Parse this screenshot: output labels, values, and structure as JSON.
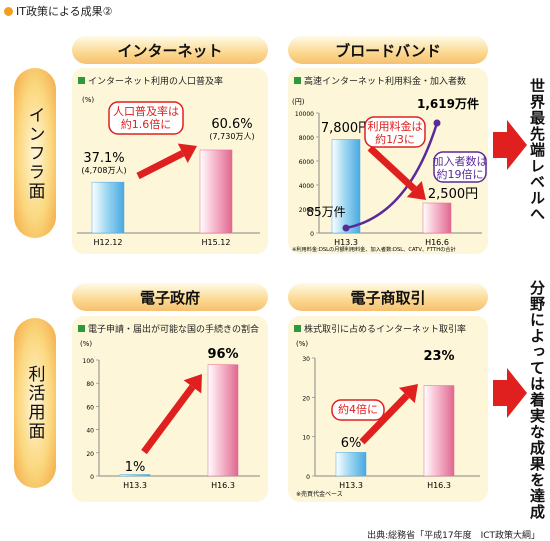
{
  "page_title": "IT政策による成果②",
  "rows": {
    "top_label": "インフラ面",
    "bottom_label": "利活用面"
  },
  "side_texts": {
    "top": "世界最先端レベルへ",
    "bottom": "分野によっては着実な成果を達成"
  },
  "source": "出典:総務省「平成17年度　ICT政策大綱」",
  "colors": {
    "blue_bar": "#9fd8f2",
    "pink_bar": "#f6b8cc",
    "red_arrow": "#e0201e",
    "purple_line": "#5a2a9a",
    "header_gold": "#f6c070",
    "panel_bg": "#fdf6d8"
  },
  "chart_data": [
    {
      "id": "internet",
      "type": "bar",
      "header": "インターネット",
      "title": "インターネット利用の人口普及率",
      "unit": "(%)",
      "categories": [
        "H12.12",
        "H15.12"
      ],
      "values": [
        37.1,
        60.6
      ],
      "value_labels": [
        "37.1%",
        "60.6%"
      ],
      "sub_labels": [
        "(4,708万人)",
        "(7,730万人)"
      ],
      "callout": [
        "人口普及率は",
        "約1.6倍に"
      ],
      "ylim": [
        0,
        100
      ]
    },
    {
      "id": "broadband",
      "type": "bar",
      "header": "ブロードバンド",
      "title": "高速インターネット利用料金・加入者数",
      "unit": "(円)",
      "y_ticks": [
        "10000",
        "8000",
        "6000",
        "4000",
        "2000",
        "0"
      ],
      "categories": [
        "H13.3",
        "H16.6"
      ],
      "values": [
        7800,
        2500
      ],
      "value_labels": [
        "7,800円",
        "2,500円"
      ],
      "series": [
        {
          "name": "加入者数",
          "values": [
            85,
            1619
          ],
          "value_labels": [
            "85万件",
            "1,619万件"
          ]
        }
      ],
      "callout_price": [
        "利用料金は",
        "約1/3に"
      ],
      "callout_subscribers": [
        "加入者数は",
        "約19倍に"
      ],
      "note": "※利用料金:DSLの月額利用料金、加入者数:DSL、CATV、FTTHの合計",
      "ylim": [
        0,
        10000
      ]
    },
    {
      "id": "egov",
      "type": "bar",
      "header": "電子政府",
      "title": "電子申請・届出が可能な国の手続きの割合",
      "unit": "(%)",
      "y_ticks": [
        "100",
        "80",
        "60",
        "40",
        "20",
        "0"
      ],
      "categories": [
        "H13.3",
        "H16.3"
      ],
      "values": [
        1,
        96
      ],
      "value_labels": [
        "1%",
        "96%"
      ],
      "ylim": [
        0,
        100
      ]
    },
    {
      "id": "ecommerce",
      "type": "bar",
      "header": "電子商取引",
      "title": "株式取引に占めるインターネット取引率",
      "unit": "(%)",
      "y_ticks": [
        "30",
        "20",
        "10",
        "0"
      ],
      "categories": [
        "H13.3",
        "H16.3"
      ],
      "values": [
        6,
        23
      ],
      "value_labels": [
        "6%",
        "23%"
      ],
      "callout": [
        "約4倍に"
      ],
      "note": "※売買代金ベース",
      "ylim": [
        0,
        30
      ]
    }
  ]
}
